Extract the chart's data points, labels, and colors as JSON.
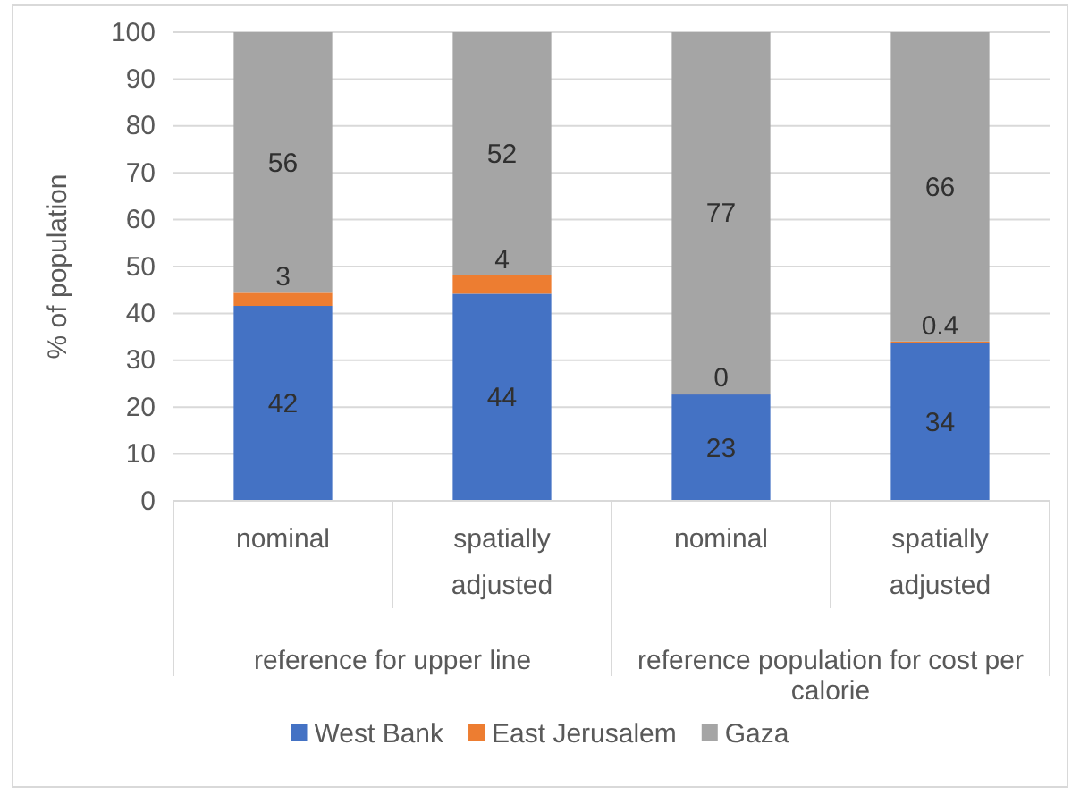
{
  "chart_data": {
    "type": "bar",
    "stacked": true,
    "ylabel": "% of population",
    "categories": [
      "nominal",
      "spatially adjusted",
      "nominal",
      "spatially adjusted"
    ],
    "series": [
      {
        "name": "West Bank",
        "color": "#4472c4",
        "values": [
          41.6,
          44.2,
          22.7,
          33.6
        ],
        "value_labels": [
          "42",
          "44",
          "23",
          "34"
        ]
      },
      {
        "name": "East Jerusalem",
        "color": "#ed7d31",
        "values": [
          2.8,
          3.9,
          0.2,
          0.4
        ],
        "value_labels": [
          "3",
          "4",
          "0",
          "0.4"
        ]
      },
      {
        "name": "Gaza",
        "color": "#a5a5a5",
        "values": [
          55.6,
          51.9,
          77.1,
          66
        ],
        "value_labels": [
          "56",
          "52",
          "77",
          "66"
        ]
      }
    ],
    "ylim": [
      0,
      100
    ],
    "yticks": [
      0,
      10,
      20,
      30,
      40,
      50,
      60,
      70,
      80,
      90,
      100
    ],
    "grid": "y",
    "legend": "bottom",
    "annotations": [
      "reference for upper line",
      "reference population for cost per calorie"
    ]
  }
}
